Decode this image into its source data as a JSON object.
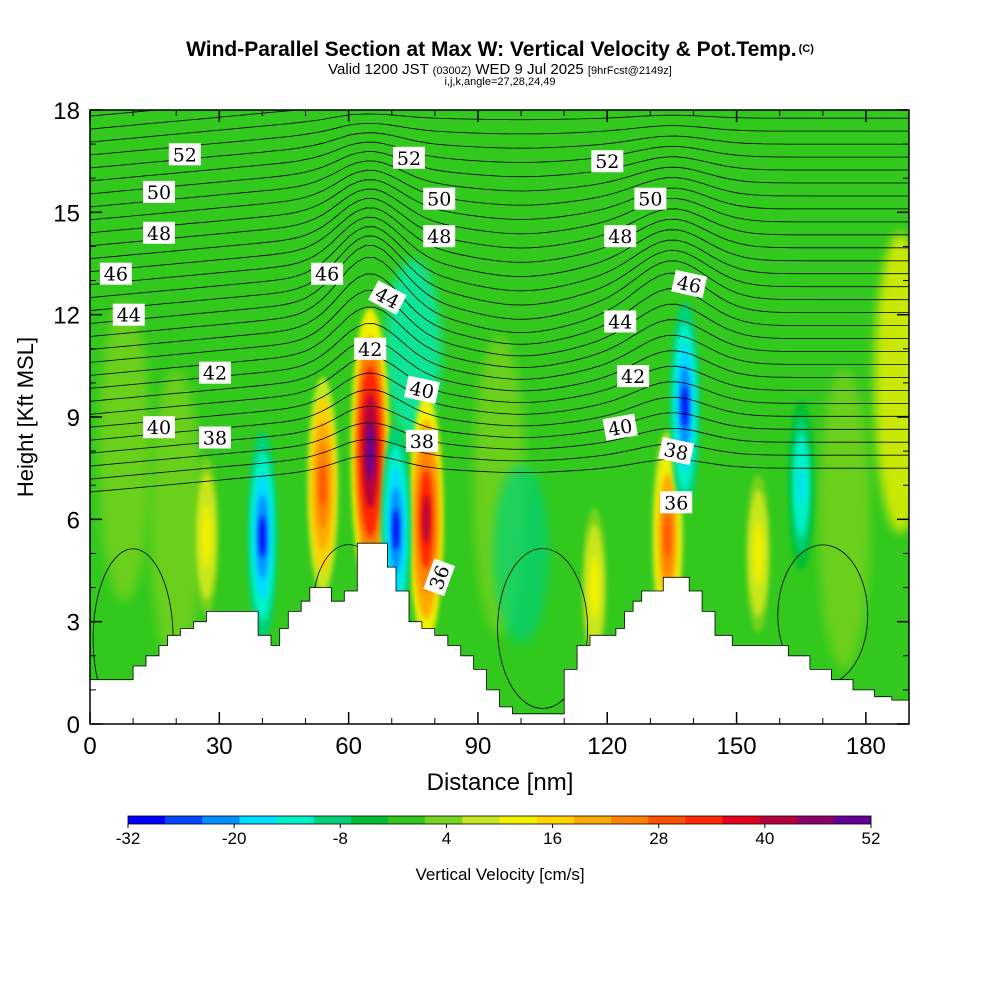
{
  "header": {
    "title": "Wind-Parallel Section at Max W: Vertical Velocity & Pot.Temp.",
    "copyright": "(C)",
    "valid_prefix": "Valid 1200 JST",
    "valid_utc": "(0300Z)",
    "valid_date": "WED 9 Jul 2025",
    "forecast": "[9hrFcst@2149z]",
    "indices": "i,j,k,angle=27,28,24,49"
  },
  "colorbar": {
    "label": "Vertical Velocity [cm/s]",
    "tick_labels": [
      "-32",
      "-20",
      "-8",
      "4",
      "16",
      "28",
      "40",
      "52"
    ],
    "colors": [
      "#0000ff",
      "#0046ff",
      "#0090ff",
      "#00dcff",
      "#00f0c8",
      "#00d278",
      "#00be32",
      "#32c81e",
      "#78d21e",
      "#c8e61e",
      "#f0f000",
      "#ffd200",
      "#ffaa00",
      "#ff8200",
      "#ff5000",
      "#ff2800",
      "#e6001e",
      "#b4003c",
      "#8c0064",
      "#640096"
    ]
  },
  "chart_data": {
    "type": "heatmap",
    "title": "Wind-Parallel Section at Max W: Vertical Velocity & Pot.Temp.",
    "xlabel": "Distance [nm]",
    "ylabel": "Height [Kft MSL]",
    "xlim": [
      0,
      190
    ],
    "ylim": [
      0,
      18
    ],
    "x_ticks": [
      0,
      30,
      60,
      90,
      120,
      150,
      180
    ],
    "y_ticks": [
      0,
      3,
      6,
      9,
      12,
      15,
      18
    ],
    "field": "Vertical Velocity [cm/s]",
    "colorbar_range": [
      -32,
      52
    ],
    "updraft_maxima": [
      {
        "x": 65,
        "z": 8.0,
        "w": 52
      },
      {
        "x": 78,
        "z": 6.0,
        "w": 40
      },
      {
        "x": 54,
        "z": 7.0,
        "w": 30
      },
      {
        "x": 27,
        "z": 5.5,
        "w": 12
      },
      {
        "x": 134,
        "z": 5.5,
        "w": 28
      },
      {
        "x": 155,
        "z": 5.0,
        "w": 12
      },
      {
        "x": 117,
        "z": 4.0,
        "w": 12
      }
    ],
    "downdraft_minima": [
      {
        "x": 40,
        "z": 5.5,
        "w": -28
      },
      {
        "x": 71,
        "z": 5.7,
        "w": -28
      },
      {
        "x": 138,
        "z": 9.3,
        "w": -28
      },
      {
        "x": 165,
        "z": 7.0,
        "w": -16
      }
    ],
    "terrain_kft": {
      "x": [
        0,
        7,
        10,
        13,
        16,
        18,
        21,
        24,
        27,
        30,
        34,
        37,
        39,
        42,
        44,
        46,
        49,
        51,
        54,
        56,
        59,
        62,
        66,
        69,
        71,
        74,
        77,
        80,
        83,
        86,
        89,
        92,
        95,
        98,
        101,
        104,
        107,
        110,
        113,
        116,
        119,
        122,
        124,
        126,
        128,
        130,
        133,
        136,
        139,
        142,
        145,
        149,
        152,
        156,
        162,
        167,
        172,
        177,
        182,
        186,
        190
      ],
      "z": [
        1.3,
        1.3,
        1.7,
        2.0,
        2.3,
        2.6,
        2.8,
        3.0,
        3.3,
        3.3,
        3.3,
        3.3,
        2.6,
        2.3,
        2.8,
        3.3,
        3.6,
        4.0,
        4.0,
        3.6,
        3.9,
        5.3,
        5.3,
        4.6,
        3.9,
        3.0,
        2.8,
        2.6,
        2.3,
        2.0,
        1.6,
        1.0,
        0.5,
        0.3,
        0.3,
        0.3,
        0.3,
        1.6,
        2.3,
        2.6,
        2.6,
        2.8,
        3.3,
        3.6,
        3.9,
        3.9,
        4.3,
        4.3,
        3.9,
        3.3,
        2.6,
        2.3,
        2.3,
        2.3,
        2.0,
        1.6,
        1.3,
        1.0,
        0.8,
        0.7,
        0.7
      ]
    },
    "theta_contour_labels": [
      {
        "text": "52",
        "x": 22,
        "z": 16.7,
        "rot": 0
      },
      {
        "text": "52",
        "x": 74,
        "z": 16.6,
        "rot": 0
      },
      {
        "text": "52",
        "x": 120,
        "z": 16.5,
        "rot": 0
      },
      {
        "text": "50",
        "x": 16,
        "z": 15.6,
        "rot": 0
      },
      {
        "text": "50",
        "x": 81,
        "z": 15.4,
        "rot": 0
      },
      {
        "text": "50",
        "x": 130,
        "z": 15.4,
        "rot": 0
      },
      {
        "text": "48",
        "x": 16,
        "z": 14.4,
        "rot": 0
      },
      {
        "text": "48",
        "x": 81,
        "z": 14.3,
        "rot": 0
      },
      {
        "text": "48",
        "x": 123,
        "z": 14.3,
        "rot": 0
      },
      {
        "text": "46",
        "x": 6,
        "z": 13.2,
        "rot": 0
      },
      {
        "text": "46",
        "x": 55,
        "z": 13.2,
        "rot": 0
      },
      {
        "text": "46",
        "x": 139,
        "z": 12.9,
        "rot": 12
      },
      {
        "text": "44",
        "x": 9,
        "z": 12.0,
        "rot": 0
      },
      {
        "text": "44",
        "x": 69,
        "z": 12.5,
        "rot": 28
      },
      {
        "text": "44",
        "x": 123,
        "z": 11.8,
        "rot": 0
      },
      {
        "text": "42",
        "x": 29,
        "z": 10.3,
        "rot": 0
      },
      {
        "text": "42",
        "x": 65,
        "z": 11.0,
        "rot": 0
      },
      {
        "text": "42",
        "x": 126,
        "z": 10.2,
        "rot": 0
      },
      {
        "text": "40",
        "x": 16,
        "z": 8.7,
        "rot": 0
      },
      {
        "text": "40",
        "x": 77,
        "z": 9.8,
        "rot": 12
      },
      {
        "text": "40",
        "x": 123,
        "z": 8.7,
        "rot": -10
      },
      {
        "text": "38",
        "x": 29,
        "z": 8.4,
        "rot": 0
      },
      {
        "text": "38",
        "x": 77,
        "z": 8.3,
        "rot": 0
      },
      {
        "text": "38",
        "x": 136,
        "z": 8.0,
        "rot": 12
      },
      {
        "text": "36",
        "x": 81,
        "z": 4.3,
        "rot": -70
      },
      {
        "text": "36",
        "x": 136,
        "z": 6.5,
        "rot": 0
      }
    ]
  }
}
